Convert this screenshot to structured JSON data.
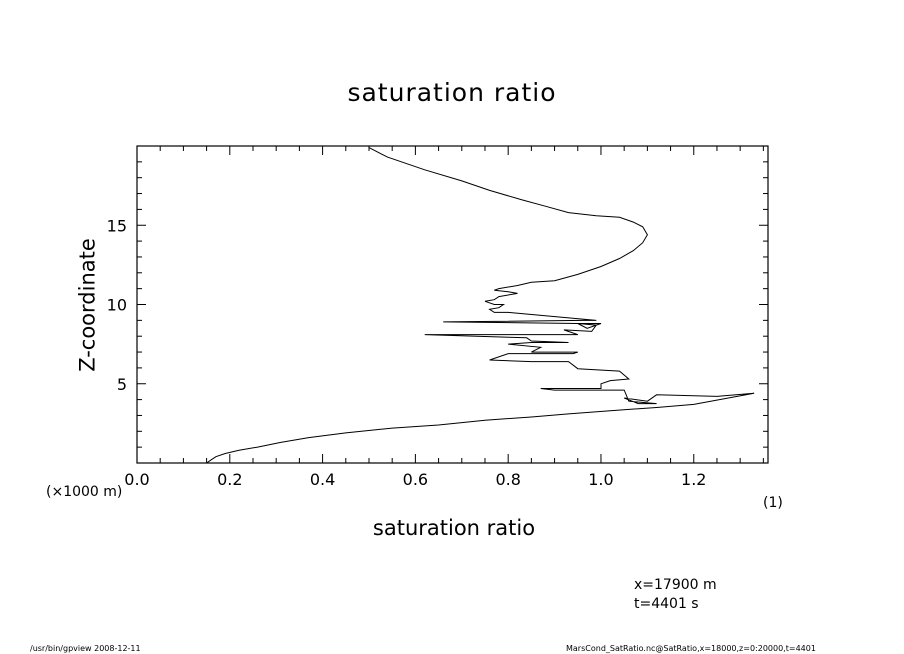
{
  "chart_data": {
    "type": "line",
    "title": "saturation ratio",
    "xlabel": "saturation ratio",
    "ylabel": "Z-coordinate",
    "x_unit_note": "(×1000 m)",
    "right_note": "(1)",
    "xlim": [
      0.0,
      1.36
    ],
    "ylim": [
      0,
      20
    ],
    "x_ticks": [
      "0.0",
      "0.2",
      "0.4",
      "0.6",
      "0.8",
      "1.0",
      "1.2"
    ],
    "y_ticks": [
      "5",
      "10",
      "15"
    ],
    "grid": false,
    "series": [
      {
        "x": [
          0.15,
          0.16,
          0.17,
          0.19,
          0.22,
          0.26,
          0.31,
          0.37,
          0.45,
          0.55,
          0.65,
          0.75,
          0.85,
          0.93,
          1.02,
          1.12,
          1.2,
          1.33,
          1.25,
          1.12,
          1.1,
          1.05,
          1.08,
          1.12,
          1.06,
          1.05,
          0.9,
          0.87,
          1.0,
          1.0,
          1.02,
          1.06,
          1.04,
          0.95,
          0.93,
          0.85,
          0.76,
          0.8,
          0.94,
          0.95,
          0.85,
          0.87,
          0.8,
          0.85,
          0.93,
          0.85,
          0.84,
          0.62,
          0.95,
          0.92,
          0.98,
          0.99,
          0.95,
          0.97,
          1.0,
          0.95,
          0.66,
          0.96,
          0.99,
          0.8,
          0.77,
          0.76,
          0.78,
          0.79,
          0.77,
          0.75,
          0.77,
          0.78,
          0.82,
          0.8,
          0.77,
          0.78,
          0.82,
          0.85,
          0.9,
          0.95,
          1.0,
          1.04,
          1.07,
          1.09,
          1.1,
          1.09,
          1.07,
          1.04,
          0.99,
          0.93,
          0.88,
          0.83,
          0.76,
          0.7,
          0.62,
          0.54,
          0.5
        ],
        "y": [
          0.0,
          0.2,
          0.4,
          0.6,
          0.8,
          1.0,
          1.3,
          1.6,
          1.9,
          2.2,
          2.4,
          2.7,
          2.9,
          3.1,
          3.3,
          3.5,
          3.7,
          4.4,
          4.2,
          4.3,
          3.9,
          4.1,
          3.75,
          3.75,
          3.9,
          4.6,
          4.6,
          4.7,
          4.7,
          5.0,
          5.2,
          5.3,
          5.8,
          5.95,
          6.4,
          6.4,
          6.5,
          6.9,
          6.9,
          7.0,
          7.0,
          7.3,
          7.5,
          7.6,
          7.6,
          7.7,
          7.9,
          8.1,
          8.1,
          8.4,
          8.3,
          8.7,
          8.8,
          8.5,
          8.8,
          8.8,
          8.9,
          9.0,
          9.0,
          9.5,
          9.5,
          9.7,
          9.8,
          10.0,
          10.0,
          10.2,
          10.3,
          10.5,
          10.7,
          10.8,
          10.9,
          11.0,
          11.2,
          11.4,
          11.5,
          11.9,
          12.4,
          12.9,
          13.4,
          13.9,
          14.4,
          14.9,
          15.2,
          15.5,
          15.6,
          15.8,
          16.2,
          16.6,
          17.2,
          17.8,
          18.5,
          19.3,
          19.9
        ]
      }
    ]
  },
  "annotations": {
    "x_pos": "x=17900 m",
    "time": "t=4401 s"
  },
  "footer": {
    "left": "/usr/bin/gpview   2008-12-11",
    "right": "MarsCond_SatRatio.nc@SatRatio,x=18000,z=0:20000,t=4401"
  }
}
